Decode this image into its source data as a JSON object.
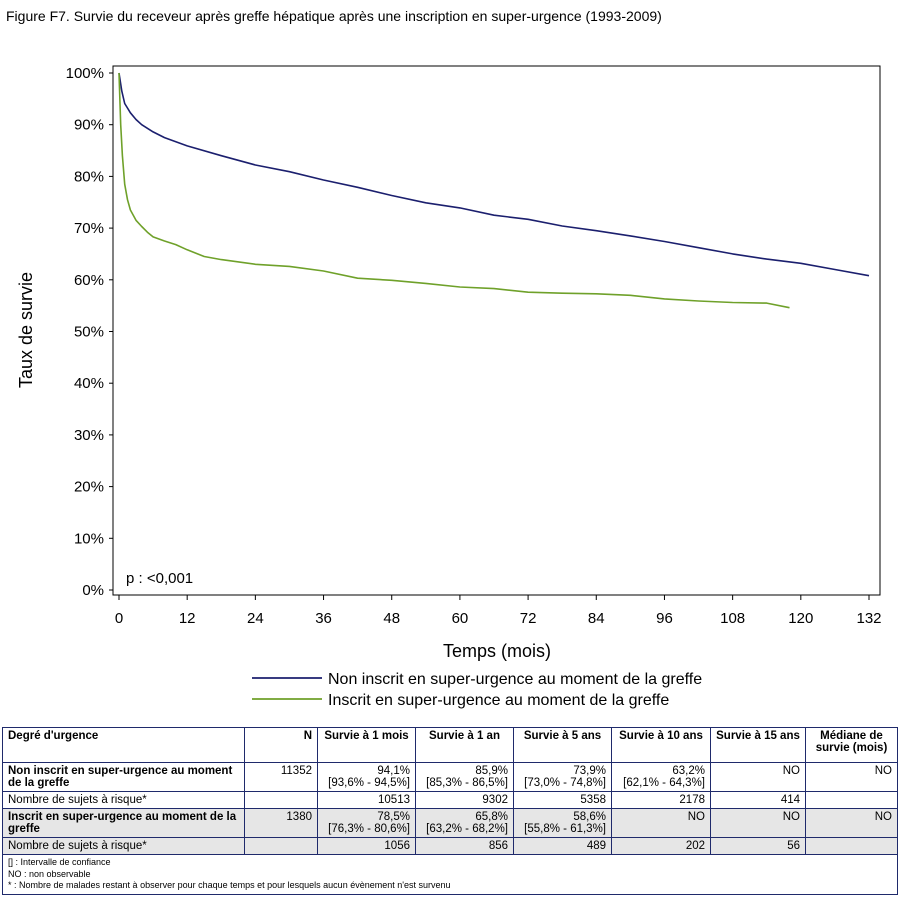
{
  "figure_title": "Figure F7. Survie du receveur après greffe hépatique après une inscription en super-urgence (1993-2009)",
  "chart_data": {
    "type": "line",
    "xlabel": "Temps (mois)",
    "ylabel": "Taux de survie",
    "xlim": [
      0,
      132
    ],
    "ylim": [
      0,
      100
    ],
    "x_ticks": [
      0,
      12,
      24,
      36,
      48,
      60,
      72,
      84,
      96,
      108,
      120,
      132
    ],
    "y_ticks": [
      0,
      10,
      20,
      30,
      40,
      50,
      60,
      70,
      80,
      90,
      100
    ],
    "y_tick_labels": [
      "0%",
      "10%",
      "20%",
      "30%",
      "40%",
      "50%",
      "60%",
      "70%",
      "80%",
      "90%",
      "100%"
    ],
    "annotation": "p : <0,001",
    "legend_position": "bottom",
    "series": [
      {
        "name": "Non inscrit en super-urgence au moment de la greffe",
        "color": "#1b1f6e",
        "x": [
          0,
          0.5,
          1,
          2,
          3,
          4,
          6,
          8,
          12,
          18,
          24,
          30,
          36,
          42,
          48,
          54,
          60,
          66,
          72,
          78,
          84,
          90,
          96,
          102,
          108,
          114,
          120,
          126,
          132
        ],
        "y": [
          100,
          96.5,
          94.1,
          92.3,
          91,
          90,
          88.6,
          87.5,
          85.9,
          84,
          82.2,
          80.9,
          79.3,
          77.9,
          76.3,
          74.9,
          73.9,
          72.5,
          71.7,
          70.4,
          69.5,
          68.5,
          67.4,
          66.2,
          65,
          64,
          63.2,
          62,
          60.8
        ]
      },
      {
        "name": "Inscrit en super-urgence au moment de la greffe",
        "color": "#6fa12a",
        "x": [
          0,
          0.3,
          0.6,
          1,
          1.5,
          2,
          3,
          4,
          5,
          6,
          8,
          10,
          12,
          15,
          18,
          24,
          30,
          36,
          42,
          48,
          54,
          60,
          66,
          72,
          78,
          84,
          90,
          96,
          102,
          108,
          114,
          118
        ],
        "y": [
          100,
          90,
          84,
          78.5,
          75.5,
          73.5,
          71.5,
          70.3,
          69.2,
          68.3,
          67.5,
          66.8,
          65.8,
          64.5,
          63.9,
          63,
          62.6,
          61.7,
          60.3,
          59.9,
          59.3,
          58.6,
          58.3,
          57.6,
          57.4,
          57.3,
          57,
          56.3,
          55.9,
          55.6,
          55.5,
          54.6
        ]
      }
    ]
  },
  "table": {
    "headers": [
      "Degré d'urgence",
      "N",
      "Survie à 1 mois",
      "Survie à 1 an",
      "Survie à 5 ans",
      "Survie à 10 ans",
      "Survie à 15 ans",
      "Médiane de survie (mois)"
    ],
    "rows": [
      {
        "label": "Non inscrit en super-urgence au moment de la greffe",
        "n": "11352",
        "m1": "94,1%",
        "m1_ci": "[93,6% - 94,5%]",
        "y1": "85,9%",
        "y1_ci": "[85,3% - 86,5%]",
        "y5": "73,9%",
        "y5_ci": "[73,0% - 74,8%]",
        "y10": "63,2%",
        "y10_ci": "[62,1% - 64,3%]",
        "y15": "NO",
        "median": "NO"
      },
      {
        "label": "Nombre de sujets à risque*",
        "m1": "10513",
        "y1": "9302",
        "y5": "5358",
        "y10": "2178",
        "y15": "414"
      },
      {
        "label": "Inscrit en super-urgence au moment de la greffe",
        "n": "1380",
        "m1": "78,5%",
        "m1_ci": "[76,3% - 80,6%]",
        "y1": "65,8%",
        "y1_ci": "[63,2% - 68,2%]",
        "y5": "58,6%",
        "y5_ci": "[55,8% - 61,3%]",
        "y10": "NO",
        "y15": "NO",
        "median": "NO"
      },
      {
        "label": "Nombre de sujets à risque*",
        "m1": "1056",
        "y1": "856",
        "y5": "489",
        "y10": "202",
        "y15": "56"
      }
    ],
    "footnotes": [
      "[] : Intervalle de confiance",
      "NO : non observable",
      "* : Nombre de malades restant à observer pour chaque temps et pour lesquels aucun évènement n'est survenu"
    ]
  }
}
